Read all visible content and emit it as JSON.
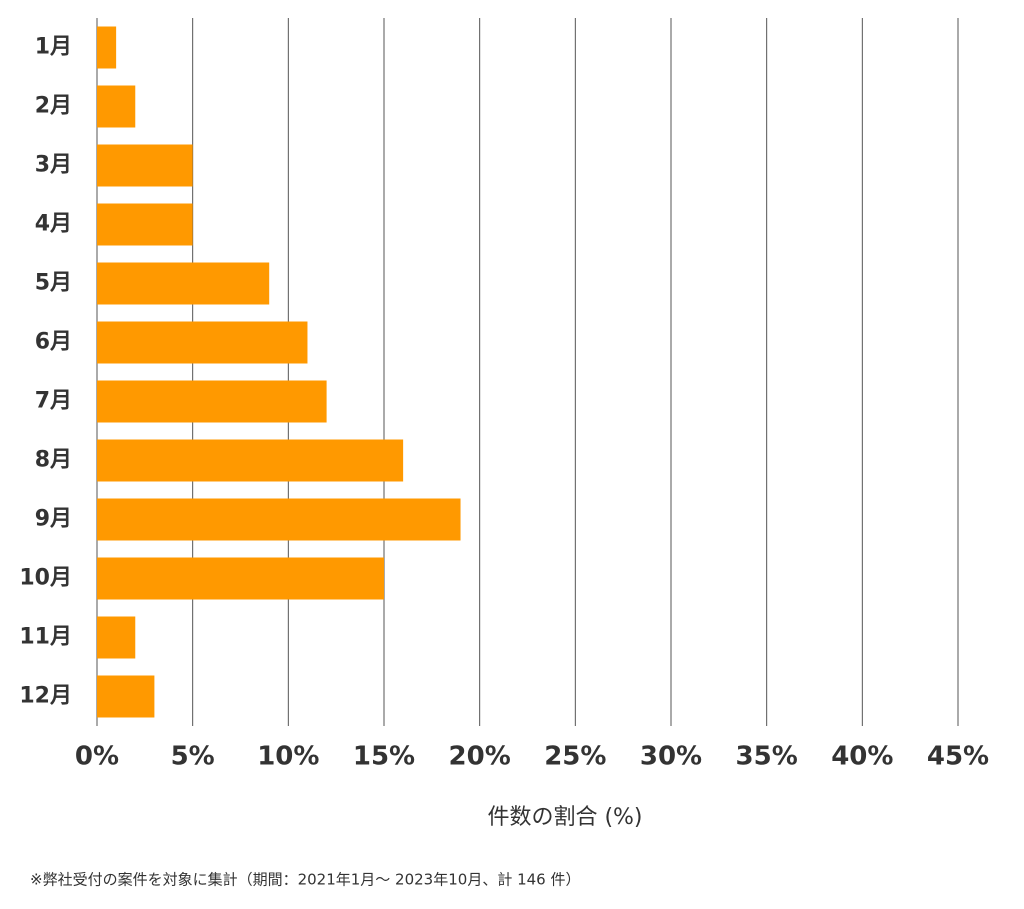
{
  "chart_data": {
    "type": "bar",
    "orientation": "horizontal",
    "categories": [
      "1月",
      "2月",
      "3月",
      "4月",
      "5月",
      "6月",
      "7月",
      "8月",
      "9月",
      "10月",
      "11月",
      "12月"
    ],
    "values": [
      1,
      2,
      5,
      5,
      9,
      11,
      12,
      16,
      19,
      15,
      2,
      3
    ],
    "color": "#ff9900",
    "xlim": [
      0,
      45
    ],
    "xticks": [
      {
        "value": 0,
        "label": "0%"
      },
      {
        "value": 5,
        "label": "5%"
      },
      {
        "value": 10,
        "label": "10%"
      },
      {
        "value": 15,
        "label": "15%"
      },
      {
        "value": 20,
        "label": "20%"
      },
      {
        "value": 25,
        "label": "25%"
      },
      {
        "value": 30,
        "label": "30%"
      },
      {
        "value": 35,
        "label": "35%"
      },
      {
        "value": 40,
        "label": "40%"
      },
      {
        "value": 45,
        "label": "45%"
      }
    ],
    "grid": true,
    "x_label": "件数の割合 (%)",
    "footnote": "※弊社受付の案件を対象に集計（期間：2021年1月～ 2023年10月、計 146 件）"
  }
}
